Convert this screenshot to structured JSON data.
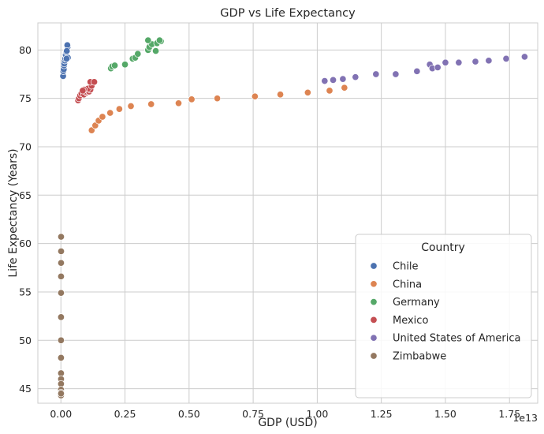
{
  "chart_data": {
    "type": "scatter",
    "title": "GDP vs Life Expectancy",
    "xlabel": "GDP (USD)",
    "ylabel": "Life Expectancy (Years)",
    "x_offset_label": "1e13",
    "x_scale": 10000000000000.0,
    "xlim": [
      -0.09,
      1.86
    ],
    "ylim": [
      43.5,
      82.8
    ],
    "x_ticks": [
      0.0,
      0.25,
      0.5,
      0.75,
      1.0,
      1.25,
      1.5,
      1.75
    ],
    "x_tick_labels": [
      "0.00",
      "0.25",
      "0.50",
      "0.75",
      "1.00",
      "1.25",
      "1.50",
      "1.75"
    ],
    "y_ticks": [
      45,
      50,
      55,
      60,
      65,
      70,
      75,
      80
    ],
    "y_tick_labels": [
      "45",
      "50",
      "55",
      "60",
      "65",
      "70",
      "75",
      "80"
    ],
    "grid": true,
    "legend": {
      "title": "Country",
      "placement": "lower-right"
    },
    "series": [
      {
        "name": "Chile",
        "color": "#4c72b0",
        "points": [
          [
            0.0078,
            77.3
          ],
          [
            0.0085,
            77.3
          ],
          [
            0.0095,
            77.8
          ],
          [
            0.011,
            78.0
          ],
          [
            0.012,
            78.4
          ],
          [
            0.013,
            78.6
          ],
          [
            0.015,
            78.9
          ],
          [
            0.017,
            79.1
          ],
          [
            0.019,
            79.5
          ],
          [
            0.021,
            79.8
          ],
          [
            0.024,
            80.0
          ],
          [
            0.026,
            80.3
          ],
          [
            0.025,
            80.5
          ],
          [
            0.023,
            79.9
          ],
          [
            0.027,
            79.2
          ],
          [
            0.022,
            79.1
          ]
        ]
      },
      {
        "name": "China",
        "color": "#dd8452",
        "points": [
          [
            0.12,
            71.7
          ],
          [
            0.134,
            72.2
          ],
          [
            0.147,
            72.7
          ],
          [
            0.162,
            73.1
          ],
          [
            0.192,
            73.5
          ],
          [
            0.228,
            73.9
          ],
          [
            0.273,
            74.2
          ],
          [
            0.352,
            74.4
          ],
          [
            0.459,
            74.5
          ],
          [
            0.51,
            74.9
          ],
          [
            0.61,
            75.0
          ],
          [
            0.757,
            75.2
          ],
          [
            0.856,
            75.4
          ],
          [
            0.963,
            75.6
          ],
          [
            1.048,
            75.8
          ],
          [
            1.106,
            76.1
          ]
        ]
      },
      {
        "name": "Germany",
        "color": "#55a868",
        "points": [
          [
            0.195,
            78.1
          ],
          [
            0.2,
            78.3
          ],
          [
            0.21,
            78.4
          ],
          [
            0.25,
            78.5
          ],
          [
            0.28,
            79.1
          ],
          [
            0.29,
            79.2
          ],
          [
            0.3,
            79.6
          ],
          [
            0.34,
            80.0
          ],
          [
            0.345,
            80.3
          ],
          [
            0.37,
            79.9
          ],
          [
            0.355,
            80.6
          ],
          [
            0.375,
            80.7
          ],
          [
            0.39,
            80.9
          ],
          [
            0.385,
            81.0
          ],
          [
            0.34,
            81.0
          ]
        ]
      },
      {
        "name": "Mexico",
        "color": "#c44e52",
        "points": [
          [
            0.067,
            74.8
          ],
          [
            0.07,
            75.0
          ],
          [
            0.075,
            75.3
          ],
          [
            0.08,
            75.5
          ],
          [
            0.09,
            75.4
          ],
          [
            0.1,
            75.6
          ],
          [
            0.095,
            75.7
          ],
          [
            0.11,
            75.7
          ],
          [
            0.115,
            75.9
          ],
          [
            0.105,
            76.0
          ],
          [
            0.12,
            76.3
          ],
          [
            0.115,
            76.7
          ],
          [
            0.13,
            76.7
          ],
          [
            0.09,
            75.9
          ],
          [
            0.085,
            75.8
          ]
        ]
      },
      {
        "name": "United States of America",
        "color": "#8172b3",
        "points": [
          [
            1.029,
            76.8
          ],
          [
            1.062,
            76.9
          ],
          [
            1.1,
            77.0
          ],
          [
            1.149,
            77.2
          ],
          [
            1.229,
            77.5
          ],
          [
            1.306,
            77.5
          ],
          [
            1.389,
            77.8
          ],
          [
            1.439,
            78.5
          ],
          [
            1.449,
            78.1
          ],
          [
            1.47,
            78.2
          ],
          [
            1.5,
            78.7
          ],
          [
            1.552,
            78.7
          ],
          [
            1.617,
            78.8
          ],
          [
            1.669,
            78.9
          ],
          [
            1.737,
            79.1
          ],
          [
            1.809,
            79.3
          ]
        ]
      },
      {
        "name": "Zimbabwe",
        "color": "#937860",
        "points": [
          [
            0.0007,
            60.7
          ],
          [
            0.0008,
            59.2
          ],
          [
            0.0007,
            58.0
          ],
          [
            0.0006,
            56.6
          ],
          [
            0.0006,
            54.9
          ],
          [
            0.0005,
            52.4
          ],
          [
            0.0005,
            50.0
          ],
          [
            0.0005,
            48.2
          ],
          [
            0.0005,
            46.6
          ],
          [
            0.0006,
            46.0
          ],
          [
            0.0005,
            45.5
          ],
          [
            0.0004,
            44.9
          ],
          [
            0.0004,
            44.6
          ],
          [
            0.0004,
            44.3
          ],
          [
            0.0005,
            44.5
          ]
        ]
      }
    ]
  }
}
